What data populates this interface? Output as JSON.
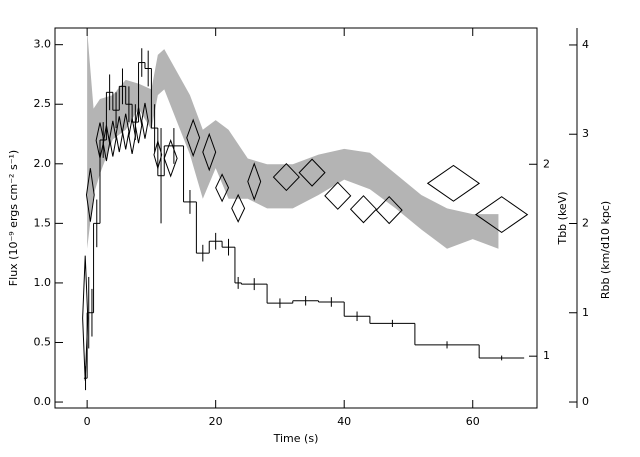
{
  "chart_data": {
    "type": "combo",
    "xlabel": "Time (s)",
    "ylabel": "Flux (10⁻⁹ ergs cm⁻² s⁻¹)",
    "y2label": "Rbb (km/d10 kpc)",
    "y3label": "Tbb (keV)",
    "xlim": [
      -5,
      70
    ],
    "xticks": [
      0,
      20,
      40,
      60
    ],
    "ylim": [
      -0.05,
      3.14
    ],
    "yticks": [
      {
        "value": 0,
        "label": "0.0"
      },
      {
        "value": 0.5,
        "label": "0.5"
      },
      {
        "value": 1,
        "label": "1.0"
      },
      {
        "value": 1.5,
        "label": "1.5"
      },
      {
        "value": 2,
        "label": "2.0"
      },
      {
        "value": 2.5,
        "label": "2.5"
      },
      {
        "value": 3,
        "label": "3.0"
      }
    ],
    "y2lim": [
      -0.067,
      4.19
    ],
    "y2ticks": [
      0,
      1,
      2,
      3,
      4
    ],
    "y3lim": [
      0.73,
      2.71
    ],
    "y3ticks": [
      1,
      2
    ],
    "series": [
      {
        "type": "band",
        "axis": "y3",
        "color": "#b4b4b4",
        "x": [
          0,
          1,
          2,
          4,
          6,
          8,
          10,
          11,
          12,
          16,
          18,
          20,
          22,
          25,
          28,
          32,
          36,
          40,
          44,
          48,
          52,
          56,
          60,
          64
        ],
        "upper": [
          2.7,
          2.29,
          2.34,
          2.36,
          2.44,
          2.42,
          2.39,
          2.57,
          2.6,
          2.36,
          2.18,
          2.23,
          2.18,
          2.03,
          2.0,
          2.0,
          2.05,
          2.08,
          2.06,
          1.95,
          1.84,
          1.77,
          1.74,
          1.74
        ],
        "lower": [
          1.56,
          1.84,
          1.95,
          2.13,
          2.18,
          2.29,
          2.18,
          2.36,
          2.39,
          2.05,
          1.82,
          1.98,
          1.82,
          1.82,
          1.77,
          1.77,
          1.84,
          1.92,
          1.87,
          1.77,
          1.66,
          1.56,
          1.61,
          1.56
        ]
      },
      {
        "type": "step",
        "axis": "y",
        "color": "#000000",
        "bins": [
          -0.5,
          0,
          0.5,
          1,
          2,
          3,
          4,
          5,
          6,
          7,
          8,
          9,
          10,
          11,
          12,
          15,
          17,
          19,
          21,
          23,
          24,
          28,
          32,
          36,
          40,
          44,
          51,
          61,
          68
        ],
        "values": [
          0.2,
          0.75,
          0.75,
          1.5,
          2.2,
          2.6,
          2.45,
          2.65,
          2.5,
          2.35,
          2.85,
          2.8,
          2.3,
          1.9,
          2.15,
          1.68,
          1.25,
          1.35,
          1.3,
          1.0,
          0.99,
          0.83,
          0.85,
          0.84,
          0.72,
          0.66,
          0.48,
          0.37
        ],
        "errors": [
          0.1,
          0.3,
          0.2,
          0.2,
          0.15,
          0.15,
          0.15,
          0.15,
          0.15,
          0.15,
          0.12,
          0.15,
          0.2,
          0.4,
          0.15,
          0.1,
          0.07,
          0.07,
          0.07,
          0.05,
          0.05,
          0.04,
          0.04,
          0.04,
          0.04,
          0.03,
          0.03,
          0.02
        ]
      },
      {
        "type": "diamond",
        "axis": "y2",
        "color": "#000000",
        "x": [
          -0.3,
          0.5,
          2,
          3,
          4,
          5,
          6,
          7,
          8,
          9,
          11,
          13,
          16.5,
          19,
          21,
          23.5,
          26,
          31,
          35,
          39,
          43,
          47,
          57,
          64.5
        ],
        "xerr": [
          0.4,
          0.6,
          0.6,
          0.5,
          0.5,
          0.5,
          0.5,
          0.5,
          0.5,
          0.5,
          0.6,
          1,
          1,
          1,
          1,
          1,
          1,
          2,
          2,
          2,
          2,
          2,
          4,
          4
        ],
        "values": [
          0.94,
          2.32,
          2.93,
          2.9,
          2.95,
          3.0,
          3.03,
          2.98,
          3.1,
          3.15,
          2.77,
          2.73,
          2.96,
          2.8,
          2.4,
          2.17,
          2.47,
          2.52,
          2.57,
          2.31,
          2.16,
          2.15,
          2.45,
          2.1
        ],
        "errors": [
          0.7,
          0.3,
          0.2,
          0.2,
          0.2,
          0.2,
          0.2,
          0.2,
          0.2,
          0.2,
          0.15,
          0.2,
          0.2,
          0.2,
          0.15,
          0.15,
          0.2,
          0.15,
          0.15,
          0.15,
          0.15,
          0.15,
          0.2,
          0.2
        ]
      }
    ]
  }
}
